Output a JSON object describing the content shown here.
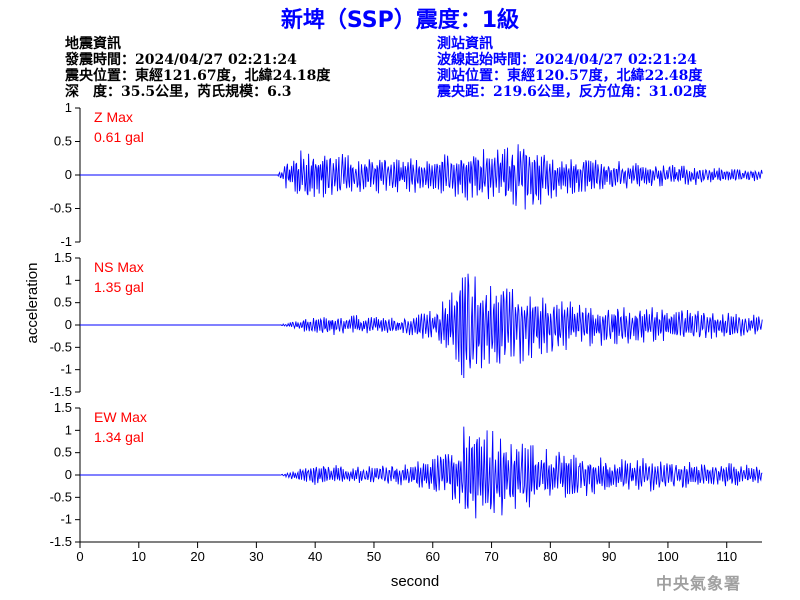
{
  "title": "新埤（SSP）震度：1級",
  "earthquake_info": {
    "heading": "地震資訊",
    "time": "發震時間：2024/04/27 02:21:24",
    "location": "震央位置：東經121.67度，北緯24.18度",
    "depth_mag": "深　度：35.5公里，芮氏規模：6.3"
  },
  "station_info": {
    "heading": "測站資訊",
    "wave_start": "波線起始時間：2024/04/27 02:21:24",
    "location": "測站位置：東經120.57度，北緯22.48度",
    "distance": "震央距：219.6公里，反方位角：31.02度"
  },
  "credit": "中央氣象署",
  "chart_data": {
    "type": "line",
    "title": "新埤（SSP）震度：1級",
    "xlabel": "second",
    "ylabel": "acceleration",
    "xlim": [
      0,
      116
    ],
    "x_ticks": [
      0,
      10,
      20,
      30,
      40,
      50,
      60,
      70,
      80,
      90,
      100,
      110
    ],
    "line_color": "#0000ff",
    "label_color": "#ff0000",
    "panels": [
      {
        "component": "Z",
        "max_label": "Z Max",
        "max_value": "0.61 gal",
        "ylim": [
          -1,
          1
        ],
        "y_ticks": [
          -1,
          -0.5,
          0,
          0.5,
          1
        ],
        "y_tick_labels": [
          "-1",
          "-0.5",
          "0",
          "0.5",
          "1"
        ],
        "envelope": {
          "t": [
            0,
            33.5,
            35,
            38,
            42,
            48,
            55,
            60,
            66,
            70,
            73,
            76,
            78,
            82,
            88,
            95,
            100,
            105,
            110,
            116
          ],
          "amp": [
            0,
            0,
            0.2,
            0.42,
            0.38,
            0.3,
            0.28,
            0.3,
            0.42,
            0.5,
            0.5,
            0.61,
            0.45,
            0.35,
            0.28,
            0.2,
            0.18,
            0.15,
            0.1,
            0.09
          ]
        }
      },
      {
        "component": "NS",
        "max_label": "NS Max",
        "max_value": "1.35 gal",
        "ylim": [
          -1.5,
          1.5
        ],
        "y_ticks": [
          -1.5,
          -1,
          -0.5,
          0,
          0.5,
          1,
          1.5
        ],
        "y_tick_labels": [
          "-1.5",
          "-1",
          "-0.5",
          "0",
          "0.5",
          "1",
          "1.5"
        ],
        "envelope": {
          "t": [
            0,
            34,
            36,
            40,
            45,
            50,
            55,
            60,
            63,
            65,
            67,
            70,
            74,
            78,
            82,
            88,
            95,
            100,
            105,
            110,
            116
          ],
          "amp": [
            0,
            0,
            0.08,
            0.22,
            0.25,
            0.2,
            0.22,
            0.35,
            0.7,
            1.35,
            1.2,
            1.05,
            0.95,
            0.75,
            0.6,
            0.5,
            0.45,
            0.4,
            0.35,
            0.3,
            0.25
          ]
        }
      },
      {
        "component": "EW",
        "max_label": "EW Max",
        "max_value": "1.34 gal",
        "ylim": [
          -1.5,
          1.5
        ],
        "y_ticks": [
          -1.5,
          -1,
          -0.5,
          0,
          0.5,
          1,
          1.5
        ],
        "y_tick_labels": [
          "-1.5",
          "-1",
          "-0.5",
          "0",
          "0.5",
          "1",
          "1.5"
        ],
        "envelope": {
          "t": [
            0,
            34,
            36,
            40,
            45,
            50,
            55,
            60,
            64,
            66,
            68,
            72,
            76,
            80,
            85,
            90,
            95,
            100,
            105,
            110,
            116
          ],
          "amp": [
            0,
            0,
            0.1,
            0.25,
            0.25,
            0.2,
            0.25,
            0.4,
            0.75,
            1.34,
            1.1,
            0.95,
            0.75,
            0.6,
            0.5,
            0.45,
            0.4,
            0.35,
            0.3,
            0.28,
            0.2
          ]
        }
      }
    ]
  }
}
